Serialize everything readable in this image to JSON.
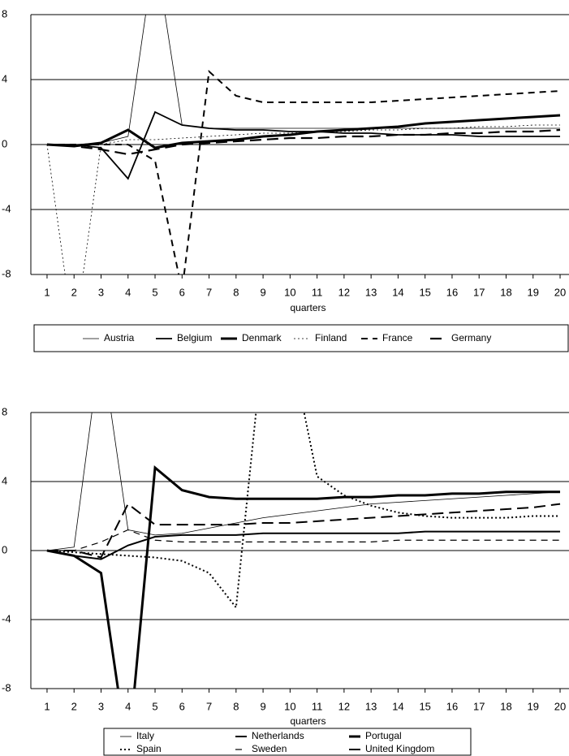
{
  "chart_data": [
    {
      "type": "line",
      "x_label": "quarters",
      "x": [
        1,
        2,
        3,
        4,
        5,
        6,
        7,
        8,
        9,
        10,
        11,
        12,
        13,
        14,
        15,
        16,
        17,
        18,
        19,
        20
      ],
      "xlim": [
        0.4,
        20.33
      ],
      "xticks": [
        1,
        2,
        3,
        4,
        5,
        6,
        7,
        8,
        9,
        10,
        11,
        12,
        13,
        14,
        15,
        16,
        17,
        18,
        19,
        20
      ],
      "ylim": [
        -8,
        8
      ],
      "yticks": [
        -8,
        -4,
        0,
        4,
        8
      ],
      "grid": true,
      "series": [
        {
          "name": "Austria",
          "color": "#000000",
          "dash": "solid",
          "line_width": 0.8,
          "values": [
            0,
            0,
            0.1,
            0.5,
            12,
            1.2,
            1.0,
            1.0,
            1.0,
            1.0,
            1.0,
            1.0,
            1.0,
            1.0,
            1.0,
            1.0,
            1.0,
            1.0,
            1.0,
            1.0
          ]
        },
        {
          "name": "Belgium",
          "color": "#000000",
          "dash": "solid",
          "line_width": 1.8,
          "values": [
            0,
            0,
            -0.2,
            -2.1,
            2.0,
            1.2,
            1.0,
            0.9,
            0.9,
            0.8,
            0.8,
            0.7,
            0.7,
            0.6,
            0.6,
            0.6,
            0.5,
            0.5,
            0.5,
            0.5
          ]
        },
        {
          "name": "Denmark",
          "color": "#000000",
          "dash": "solid",
          "line_width": 3,
          "values": [
            0,
            -0.1,
            0.1,
            0.9,
            -0.2,
            0.1,
            0.2,
            0.3,
            0.5,
            0.6,
            0.8,
            0.9,
            1.0,
            1.1,
            1.3,
            1.4,
            1.5,
            1.6,
            1.7,
            1.8
          ]
        },
        {
          "name": "Finland",
          "color": "#000000",
          "dash": "dotted",
          "line_width": 0.8,
          "values": [
            0,
            -12,
            0,
            0.3,
            0.3,
            0.4,
            0.5,
            0.6,
            0.7,
            0.7,
            0.8,
            0.8,
            0.9,
            0.9,
            1.0,
            1.0,
            1.1,
            1.1,
            1.2,
            1.2
          ]
        },
        {
          "name": "France",
          "color": "#000000",
          "dash": "dashed",
          "line_width": 2,
          "values": [
            0,
            0,
            0,
            0,
            -1,
            -9,
            4.5,
            3.0,
            2.6,
            2.6,
            2.6,
            2.6,
            2.6,
            2.7,
            2.8,
            2.9,
            3.0,
            3.1,
            3.2,
            3.3
          ]
        },
        {
          "name": "Germany",
          "color": "#000000",
          "dash": "longdash",
          "line_width": 2.2,
          "values": [
            0,
            -0.1,
            -0.3,
            -0.6,
            -0.3,
            0,
            0.1,
            0.2,
            0.3,
            0.4,
            0.4,
            0.5,
            0.5,
            0.6,
            0.6,
            0.7,
            0.7,
            0.8,
            0.8,
            0.9
          ]
        }
      ]
    },
    {
      "type": "line",
      "x_label": "quarters",
      "x": [
        1,
        2,
        3,
        4,
        5,
        6,
        7,
        8,
        9,
        10,
        11,
        12,
        13,
        14,
        15,
        16,
        17,
        18,
        19,
        20
      ],
      "xlim": [
        0.4,
        20.33
      ],
      "xticks": [
        1,
        2,
        3,
        4,
        5,
        6,
        7,
        8,
        9,
        10,
        11,
        12,
        13,
        14,
        15,
        16,
        17,
        18,
        19,
        20
      ],
      "ylim": [
        -8,
        8
      ],
      "yticks": [
        -8,
        -4,
        0,
        4,
        8
      ],
      "grid": true,
      "series": [
        {
          "name": "Italy",
          "color": "#000000",
          "dash": "solid",
          "line_width": 0.8,
          "values": [
            0,
            0.2,
            12,
            1.2,
            0.9,
            1.0,
            1.3,
            1.6,
            1.9,
            2.1,
            2.3,
            2.5,
            2.7,
            2.8,
            2.9,
            3.0,
            3.1,
            3.2,
            3.3,
            3.4
          ]
        },
        {
          "name": "Netherlands",
          "color": "#000000",
          "dash": "solid",
          "line_width": 2,
          "values": [
            0,
            -0.3,
            -0.5,
            0.3,
            0.8,
            0.9,
            0.9,
            0.9,
            1.0,
            1.0,
            1.0,
            1.0,
            1.0,
            1.0,
            1.1,
            1.1,
            1.1,
            1.1,
            1.1,
            1.1
          ]
        },
        {
          "name": "Portugal",
          "color": "#000000",
          "dash": "solid",
          "line_width": 3,
          "values": [
            0,
            -0.3,
            -1.3,
            -12,
            4.8,
            3.5,
            3.1,
            3.0,
            3.0,
            3.0,
            3.0,
            3.1,
            3.1,
            3.2,
            3.2,
            3.3,
            3.3,
            3.4,
            3.4,
            3.4
          ]
        },
        {
          "name": "Spain",
          "color": "#000000",
          "dash": "dotted",
          "line_width": 2,
          "values": [
            0,
            -0.1,
            -0.2,
            -0.3,
            -0.4,
            -0.6,
            -1.3,
            -3.3,
            12,
            12,
            4.3,
            3.2,
            2.6,
            2.2,
            2.0,
            1.9,
            1.9,
            1.9,
            2.0,
            2.0
          ]
        },
        {
          "name": "Sweden",
          "color": "#000000",
          "dash": "dashed",
          "line_width": 1.2,
          "values": [
            0,
            0,
            0.5,
            1.2,
            0.6,
            0.5,
            0.5,
            0.5,
            0.5,
            0.5,
            0.5,
            0.5,
            0.5,
            0.6,
            0.6,
            0.6,
            0.6,
            0.6,
            0.6,
            0.6
          ]
        },
        {
          "name": "United Kingdom",
          "color": "#000000",
          "dash": "longdash",
          "line_width": 2,
          "values": [
            0,
            0,
            -0.4,
            2.7,
            1.5,
            1.5,
            1.5,
            1.5,
            1.6,
            1.6,
            1.7,
            1.8,
            1.9,
            2.0,
            2.1,
            2.2,
            2.3,
            2.4,
            2.5,
            2.7
          ]
        }
      ]
    }
  ]
}
